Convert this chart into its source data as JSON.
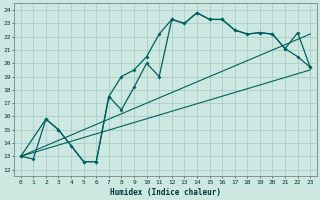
{
  "title": "",
  "xlabel": "Humidex (Indice chaleur)",
  "bg_color": "#cce8e0",
  "grid_color": "#aacccc",
  "line_color": "#006060",
  "xlim": [
    -0.5,
    23.5
  ],
  "ylim": [
    11.5,
    24.5
  ],
  "xticks": [
    0,
    1,
    2,
    3,
    4,
    5,
    6,
    7,
    8,
    9,
    10,
    11,
    12,
    13,
    14,
    15,
    16,
    17,
    18,
    19,
    20,
    21,
    22,
    23
  ],
  "yticks": [
    12,
    13,
    14,
    15,
    16,
    17,
    18,
    19,
    20,
    21,
    22,
    23,
    24
  ],
  "series1_x": [
    0,
    1,
    2,
    3,
    4,
    5,
    6,
    7,
    8,
    9,
    10,
    11,
    12,
    13,
    14,
    15,
    16,
    17,
    18,
    19,
    20,
    21,
    22,
    23
  ],
  "series1_y": [
    13,
    12.8,
    15.8,
    15.0,
    13.8,
    12.6,
    12.6,
    17.5,
    19.0,
    19.5,
    20.5,
    22.2,
    23.3,
    23.0,
    23.8,
    23.3,
    23.3,
    22.5,
    22.2,
    22.3,
    22.2,
    21.1,
    20.5,
    19.7
  ],
  "series2_x": [
    0,
    2,
    3,
    5,
    6,
    7,
    8,
    9,
    10,
    11,
    12,
    13,
    14,
    15,
    16,
    17,
    18,
    19,
    20,
    21,
    22,
    23
  ],
  "series2_y": [
    13,
    15.8,
    15.0,
    12.6,
    12.6,
    17.5,
    16.5,
    18.2,
    20.0,
    19.0,
    23.3,
    23.0,
    23.8,
    23.3,
    23.3,
    22.5,
    22.2,
    22.3,
    22.2,
    21.1,
    22.3,
    19.7
  ],
  "line1_x": [
    0,
    23
  ],
  "line1_y": [
    13,
    19.5
  ],
  "line2_x": [
    0,
    23
  ],
  "line2_y": [
    13,
    22.2
  ]
}
